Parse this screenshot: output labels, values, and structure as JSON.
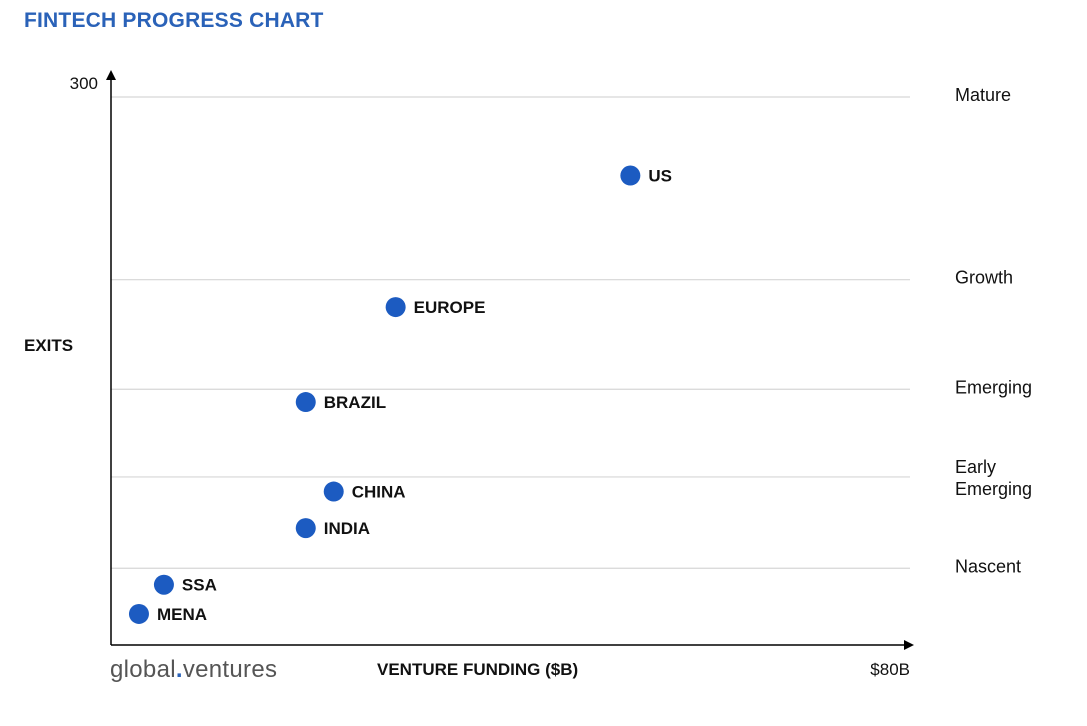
{
  "chart_data": {
    "type": "scatter",
    "title": "FINTECH PROGRESS CHART",
    "xlabel": "VENTURE FUNDING ($B)",
    "ylabel": "EXITS",
    "xlim": [
      0,
      80
    ],
    "ylim": [
      0,
      300
    ],
    "x_tick_labels": [
      "$80B"
    ],
    "y_tick_labels": [
      "300"
    ],
    "grid": true,
    "point_color": "#1c5bc1",
    "stage_bands": [
      {
        "label": "Mature",
        "y": 300
      },
      {
        "label": "Growth",
        "y": 200
      },
      {
        "label": "Emerging",
        "y": 140
      },
      {
        "label": "Early\nEmerging",
        "y": 92
      },
      {
        "label": "Nascent",
        "y": 42
      }
    ],
    "points": [
      {
        "label": "US",
        "x": 52,
        "y": 257
      },
      {
        "label": "EUROPE",
        "x": 28.5,
        "y": 185
      },
      {
        "label": "BRAZIL",
        "x": 19.5,
        "y": 133
      },
      {
        "label": "CHINA",
        "x": 22.3,
        "y": 84
      },
      {
        "label": "INDIA",
        "x": 19.5,
        "y": 64
      },
      {
        "label": "SSA",
        "x": 5.3,
        "y": 33
      },
      {
        "label": "MENA",
        "x": 2.8,
        "y": 17
      }
    ]
  },
  "branding": {
    "logo_left": "global",
    "logo_dot": ".",
    "logo_right": "ventures"
  }
}
